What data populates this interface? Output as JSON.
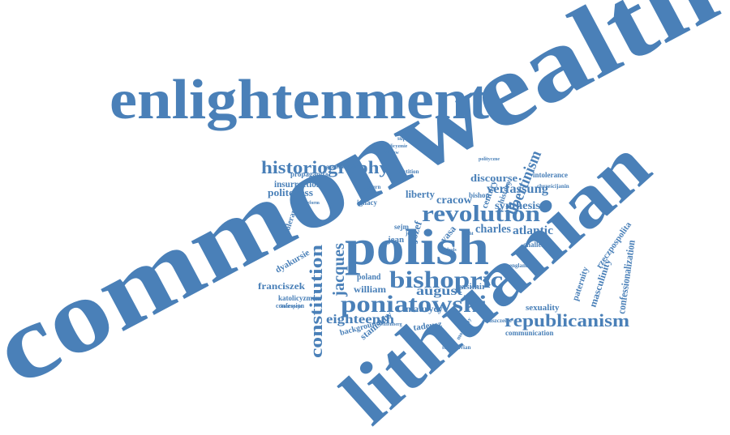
{
  "words": [
    "commonwealth",
    "enlightenment",
    "lithuanian",
    "polish",
    "revolution",
    "bishopric",
    "poniatowski",
    "republicanism",
    "historiography",
    "constitution",
    "jacques",
    "eighteenth",
    "august",
    "libertinism",
    "verfassung",
    "synthesis",
    "atlantic",
    "charles",
    "cracow",
    "liberty",
    "discourse",
    "insurrection",
    "politeness",
    "franciszek",
    "william",
    "maurycy",
    "tadeusz",
    "stanisław",
    "katolicyzmem",
    "dyakursie",
    "confessionalization",
    "masculinity",
    "paternity",
    "rzeczpospolita",
    "sexuality",
    "communication",
    "casimir",
    "poland",
    "józef",
    "vasa",
    "jean",
    "sejm",
    "ignacy",
    "bishop",
    "century",
    "history",
    "intolerance",
    "challenge",
    "propaganda",
    "tolerance",
    "background",
    "stanislavian",
    "confession",
    "suppression",
    "chrześcijanin",
    "partition",
    "england",
    "modern",
    "grześkowiak",
    "katolicyzmie",
    "polityczne",
    "koncepcja",
    "john",
    "light",
    "warsaw",
    "ideals",
    "wittenberg",
    "reform",
    "monarchy",
    "zniszczenie"
  ]
}
